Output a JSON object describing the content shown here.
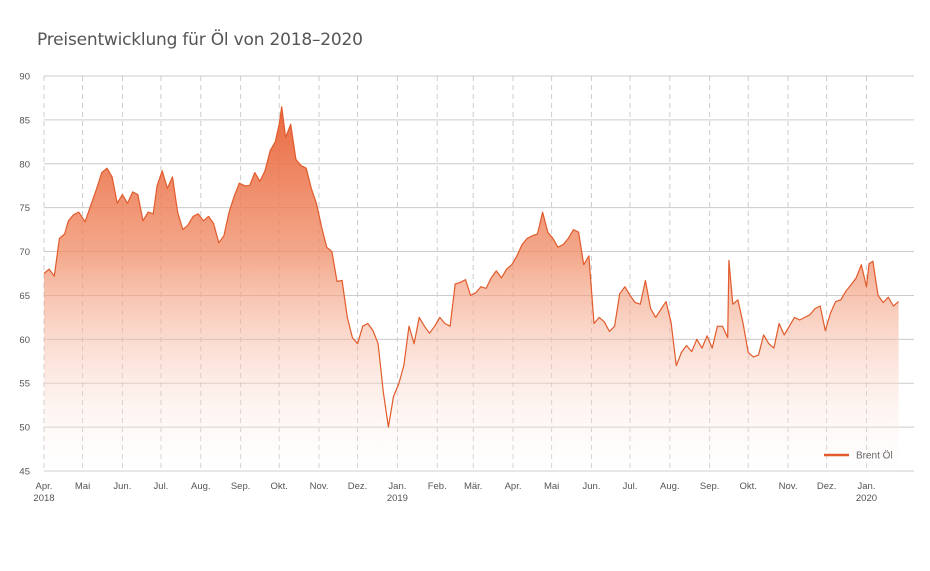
{
  "chart_data": {
    "type": "area",
    "title": "Preisentwicklung für Öl von 2018–2020",
    "xlabel": "",
    "ylabel": "",
    "ylim": [
      45,
      90
    ],
    "yticks": [
      45,
      50,
      55,
      60,
      65,
      70,
      75,
      80,
      85,
      90
    ],
    "xlim": [
      "2018-04-01",
      "2020-02-07"
    ],
    "grid": {
      "horizontal": "solid",
      "vertical": "dashed"
    },
    "legend_position": "bottom-right",
    "colors": {
      "line": "#e15b2c",
      "fill_top": "#e9683f",
      "fill_bottom": "#ffffff",
      "grid": "#cccccc"
    },
    "xticks": [
      {
        "date": "2018-04-01",
        "label": "Apr.",
        "year": "2018"
      },
      {
        "date": "2018-05-01",
        "label": "Mai",
        "year": ""
      },
      {
        "date": "2018-06-01",
        "label": "Jun.",
        "year": ""
      },
      {
        "date": "2018-07-01",
        "label": "Jul.",
        "year": ""
      },
      {
        "date": "2018-08-01",
        "label": "Aug.",
        "year": ""
      },
      {
        "date": "2018-09-01",
        "label": "Sep.",
        "year": ""
      },
      {
        "date": "2018-10-01",
        "label": "Okt.",
        "year": ""
      },
      {
        "date": "2018-11-01",
        "label": "Nov.",
        "year": ""
      },
      {
        "date": "2018-12-01",
        "label": "Dez.",
        "year": ""
      },
      {
        "date": "2019-01-01",
        "label": "Jan.",
        "year": "2019"
      },
      {
        "date": "2019-02-01",
        "label": "Feb.",
        "year": ""
      },
      {
        "date": "2019-03-01",
        "label": "Mär.",
        "year": ""
      },
      {
        "date": "2019-04-01",
        "label": "Apr.",
        "year": ""
      },
      {
        "date": "2019-05-01",
        "label": "Mai",
        "year": ""
      },
      {
        "date": "2019-06-01",
        "label": "Jun.",
        "year": ""
      },
      {
        "date": "2019-07-01",
        "label": "Jul.",
        "year": ""
      },
      {
        "date": "2019-08-01",
        "label": "Aug.",
        "year": ""
      },
      {
        "date": "2019-09-01",
        "label": "Sep.",
        "year": ""
      },
      {
        "date": "2019-10-01",
        "label": "Okt.",
        "year": ""
      },
      {
        "date": "2019-11-01",
        "label": "Nov.",
        "year": ""
      },
      {
        "date": "2019-12-01",
        "label": "Dez.",
        "year": ""
      },
      {
        "date": "2020-01-01",
        "label": "Jan.",
        "year": "2020"
      }
    ],
    "series": [
      {
        "name": "Brent Öl",
        "points": [
          [
            "2018-04-01",
            67.5
          ],
          [
            "2018-04-05",
            68.0
          ],
          [
            "2018-04-09",
            67.2
          ],
          [
            "2018-04-13",
            71.5
          ],
          [
            "2018-04-17",
            72.0
          ],
          [
            "2018-04-20",
            73.5
          ],
          [
            "2018-04-24",
            74.2
          ],
          [
            "2018-04-28",
            74.5
          ],
          [
            "2018-05-03",
            73.4
          ],
          [
            "2018-05-08",
            75.5
          ],
          [
            "2018-05-12",
            77.2
          ],
          [
            "2018-05-16",
            79.0
          ],
          [
            "2018-05-20",
            79.5
          ],
          [
            "2018-05-24",
            78.5
          ],
          [
            "2018-05-28",
            75.5
          ],
          [
            "2018-06-01",
            76.5
          ],
          [
            "2018-06-05",
            75.5
          ],
          [
            "2018-06-09",
            76.8
          ],
          [
            "2018-06-13",
            76.5
          ],
          [
            "2018-06-17",
            73.5
          ],
          [
            "2018-06-21",
            74.5
          ],
          [
            "2018-06-25",
            74.3
          ],
          [
            "2018-06-28",
            77.5
          ],
          [
            "2018-07-02",
            79.2
          ],
          [
            "2018-07-06",
            77.2
          ],
          [
            "2018-07-10",
            78.5
          ],
          [
            "2018-07-14",
            74.5
          ],
          [
            "2018-07-18",
            72.5
          ],
          [
            "2018-07-22",
            73.0
          ],
          [
            "2018-07-26",
            74.0
          ],
          [
            "2018-07-30",
            74.3
          ],
          [
            "2018-08-03",
            73.5
          ],
          [
            "2018-08-07",
            74.0
          ],
          [
            "2018-08-11",
            73.2
          ],
          [
            "2018-08-15",
            71.0
          ],
          [
            "2018-08-19",
            71.8
          ],
          [
            "2018-08-23",
            74.5
          ],
          [
            "2018-08-27",
            76.3
          ],
          [
            "2018-08-31",
            77.8
          ],
          [
            "2018-09-04",
            77.5
          ],
          [
            "2018-09-08",
            77.5
          ],
          [
            "2018-09-12",
            79.0
          ],
          [
            "2018-09-16",
            78.0
          ],
          [
            "2018-09-20",
            79.2
          ],
          [
            "2018-09-24",
            81.5
          ],
          [
            "2018-09-28",
            82.5
          ],
          [
            "2018-10-01",
            84.5
          ],
          [
            "2018-10-03",
            86.5
          ],
          [
            "2018-10-06",
            83.0
          ],
          [
            "2018-10-10",
            84.5
          ],
          [
            "2018-10-14",
            80.5
          ],
          [
            "2018-10-18",
            79.8
          ],
          [
            "2018-10-22",
            79.5
          ],
          [
            "2018-10-26",
            77.2
          ],
          [
            "2018-10-30",
            75.5
          ],
          [
            "2018-11-03",
            72.8
          ],
          [
            "2018-11-07",
            70.5
          ],
          [
            "2018-11-11",
            70.0
          ],
          [
            "2018-11-15",
            66.6
          ],
          [
            "2018-11-19",
            66.7
          ],
          [
            "2018-11-23",
            62.5
          ],
          [
            "2018-11-27",
            60.2
          ],
          [
            "2018-12-01",
            59.5
          ],
          [
            "2018-12-05",
            61.5
          ],
          [
            "2018-12-09",
            61.8
          ],
          [
            "2018-12-13",
            61.0
          ],
          [
            "2018-12-17",
            59.5
          ],
          [
            "2018-12-21",
            54.0
          ],
          [
            "2018-12-25",
            50.0
          ],
          [
            "2018-12-29",
            53.5
          ],
          [
            "2019-01-02",
            54.9
          ],
          [
            "2019-01-06",
            57.0
          ],
          [
            "2019-01-10",
            61.5
          ],
          [
            "2019-01-14",
            59.5
          ],
          [
            "2019-01-18",
            62.5
          ],
          [
            "2019-01-22",
            61.5
          ],
          [
            "2019-01-26",
            60.7
          ],
          [
            "2019-01-30",
            61.5
          ],
          [
            "2019-02-03",
            62.5
          ],
          [
            "2019-02-07",
            61.8
          ],
          [
            "2019-02-11",
            61.5
          ],
          [
            "2019-02-15",
            66.3
          ],
          [
            "2019-02-19",
            66.5
          ],
          [
            "2019-02-23",
            66.8
          ],
          [
            "2019-02-27",
            65.0
          ],
          [
            "2019-03-03",
            65.3
          ],
          [
            "2019-03-07",
            66.0
          ],
          [
            "2019-03-11",
            65.8
          ],
          [
            "2019-03-15",
            67.0
          ],
          [
            "2019-03-19",
            67.8
          ],
          [
            "2019-03-23",
            67.0
          ],
          [
            "2019-03-27",
            68.0
          ],
          [
            "2019-03-31",
            68.5
          ],
          [
            "2019-04-04",
            69.5
          ],
          [
            "2019-04-08",
            70.8
          ],
          [
            "2019-04-12",
            71.5
          ],
          [
            "2019-04-16",
            71.8
          ],
          [
            "2019-04-20",
            72.0
          ],
          [
            "2019-04-24",
            74.5
          ],
          [
            "2019-04-28",
            72.2
          ],
          [
            "2019-05-02",
            71.5
          ],
          [
            "2019-05-06",
            70.5
          ],
          [
            "2019-05-10",
            70.8
          ],
          [
            "2019-05-14",
            71.5
          ],
          [
            "2019-05-18",
            72.5
          ],
          [
            "2019-05-22",
            72.2
          ],
          [
            "2019-05-26",
            68.5
          ],
          [
            "2019-05-30",
            69.5
          ],
          [
            "2019-06-03",
            61.8
          ],
          [
            "2019-06-07",
            62.5
          ],
          [
            "2019-06-11",
            62.0
          ],
          [
            "2019-06-15",
            60.9
          ],
          [
            "2019-06-19",
            61.5
          ],
          [
            "2019-06-23",
            65.2
          ],
          [
            "2019-06-27",
            66.0
          ],
          [
            "2019-07-01",
            65.0
          ],
          [
            "2019-07-05",
            64.2
          ],
          [
            "2019-07-09",
            64.0
          ],
          [
            "2019-07-13",
            66.7
          ],
          [
            "2019-07-17",
            63.5
          ],
          [
            "2019-07-21",
            62.5
          ],
          [
            "2019-07-25",
            63.4
          ],
          [
            "2019-07-29",
            64.3
          ],
          [
            "2019-08-02",
            61.9
          ],
          [
            "2019-08-06",
            57.0
          ],
          [
            "2019-08-10",
            58.5
          ],
          [
            "2019-08-14",
            59.3
          ],
          [
            "2019-08-18",
            58.6
          ],
          [
            "2019-08-22",
            60.0
          ],
          [
            "2019-08-26",
            59.0
          ],
          [
            "2019-08-30",
            60.4
          ],
          [
            "2019-09-03",
            59.0
          ],
          [
            "2019-09-07",
            61.5
          ],
          [
            "2019-09-11",
            61.5
          ],
          [
            "2019-09-15",
            60.2
          ],
          [
            "2019-09-16",
            69.0
          ],
          [
            "2019-09-19",
            64.0
          ],
          [
            "2019-09-23",
            64.5
          ],
          [
            "2019-09-27",
            61.8
          ],
          [
            "2019-10-01",
            58.5
          ],
          [
            "2019-10-05",
            58.0
          ],
          [
            "2019-10-09",
            58.2
          ],
          [
            "2019-10-13",
            60.5
          ],
          [
            "2019-10-17",
            59.5
          ],
          [
            "2019-10-21",
            59.0
          ],
          [
            "2019-10-25",
            61.8
          ],
          [
            "2019-10-29",
            60.5
          ],
          [
            "2019-11-02",
            61.5
          ],
          [
            "2019-11-06",
            62.5
          ],
          [
            "2019-11-10",
            62.2
          ],
          [
            "2019-11-14",
            62.5
          ],
          [
            "2019-11-18",
            62.8
          ],
          [
            "2019-11-22",
            63.5
          ],
          [
            "2019-11-26",
            63.8
          ],
          [
            "2019-11-30",
            61.0
          ],
          [
            "2019-12-04",
            63.0
          ],
          [
            "2019-12-08",
            64.3
          ],
          [
            "2019-12-12",
            64.5
          ],
          [
            "2019-12-16",
            65.5
          ],
          [
            "2019-12-20",
            66.2
          ],
          [
            "2019-12-24",
            67.0
          ],
          [
            "2019-12-28",
            68.5
          ],
          [
            "2020-01-01",
            66.0
          ],
          [
            "2020-01-03",
            68.6
          ],
          [
            "2020-01-06",
            68.9
          ],
          [
            "2020-01-10",
            65.0
          ],
          [
            "2020-01-14",
            64.2
          ],
          [
            "2020-01-18",
            64.8
          ],
          [
            "2020-01-22",
            63.8
          ],
          [
            "2020-01-26",
            64.3
          ]
        ]
      }
    ]
  }
}
